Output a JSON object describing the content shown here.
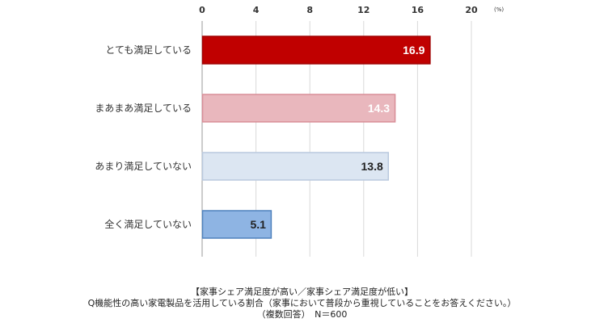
{
  "chart_data": {
    "type": "bar",
    "orientation": "horizontal",
    "unit": "(%)",
    "categories": [
      "とても満足している",
      "まあまあ満足している",
      "あまり満足していない",
      "全く満足していない"
    ],
    "values": [
      16.9,
      14.3,
      13.8,
      5.1
    ],
    "data_labels": [
      "16.9",
      "14.3",
      "13.8",
      "5.1"
    ],
    "bar_colors": [
      "#c00000",
      "#e9b7bd",
      "#dce6f2",
      "#8eb4e3"
    ],
    "bar_border_colors": [
      "#a00000",
      "#d88d97",
      "#b9c9de",
      "#4f81bd"
    ],
    "label_colors": [
      "#ffffff",
      "#ffffff",
      "#222222",
      "#222222"
    ],
    "xlim": [
      0,
      20
    ],
    "xticks": [
      0,
      4,
      8,
      12,
      16,
      20
    ],
    "xtick_labels": [
      "0",
      "4",
      "8",
      "12",
      "16",
      "20"
    ],
    "axis_position": "top",
    "grid": true,
    "legend": "none"
  },
  "caption": {
    "line1": "【家事シェア満足度が高い／家事シェア満足度が低い】",
    "line2": "Q機能性の高い家電製品を活用している割合（家事において普段から重視していることをお答えください。）",
    "line3": "（複数回答）　N＝600"
  }
}
